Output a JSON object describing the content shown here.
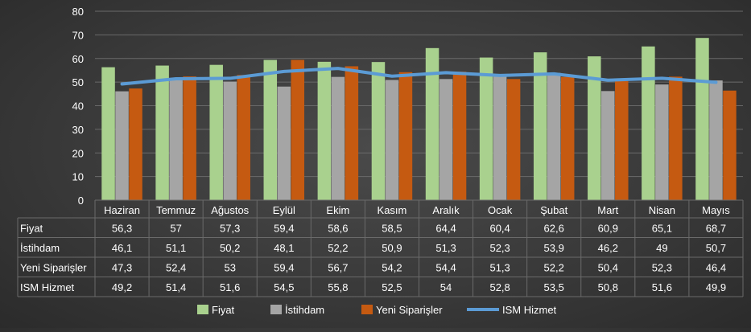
{
  "chart_data": {
    "type": "bar",
    "categories": [
      "Haziran",
      "Temmuz",
      "Ağustos",
      "Eylül",
      "Ekim",
      "Kasım",
      "Aralık",
      "Ocak",
      "Şubat",
      "Mart",
      "Nisan",
      "Mayıs"
    ],
    "series": [
      {
        "name": "Fiyat",
        "kind": "bar",
        "color": "#a9d18e",
        "values": [
          56.3,
          57,
          57.3,
          59.4,
          58.6,
          58.5,
          64.4,
          60.4,
          62.6,
          60.9,
          65.1,
          68.7
        ],
        "labels": [
          "56,3",
          "57",
          "57,3",
          "59,4",
          "58,6",
          "58,5",
          "64,4",
          "60,4",
          "62,6",
          "60,9",
          "65,1",
          "68,7"
        ]
      },
      {
        "name": "İstihdam",
        "kind": "bar",
        "color": "#a5a5a5",
        "values": [
          46.1,
          51.1,
          50.2,
          48.1,
          52.2,
          50.9,
          51.3,
          52.3,
          53.9,
          46.2,
          49,
          50.7
        ],
        "labels": [
          "46,1",
          "51,1",
          "50,2",
          "48,1",
          "52,2",
          "50,9",
          "51,3",
          "52,3",
          "53,9",
          "46,2",
          "49",
          "50,7"
        ]
      },
      {
        "name": "Yeni Siparişler",
        "kind": "bar",
        "color": "#c55a11",
        "values": [
          47.3,
          52.4,
          53,
          59.4,
          56.7,
          54.2,
          54.4,
          51.3,
          52.2,
          50.4,
          52.3,
          46.4
        ],
        "labels": [
          "47,3",
          "52,4",
          "53",
          "59,4",
          "56,7",
          "54,2",
          "54,4",
          "51,3",
          "52,2",
          "50,4",
          "52,3",
          "46,4"
        ]
      },
      {
        "name": "ISM Hizmet",
        "kind": "line",
        "color": "#5b9bd5",
        "values": [
          49.2,
          51.4,
          51.6,
          54.5,
          55.8,
          52.5,
          54,
          52.8,
          53.5,
          50.8,
          51.6,
          49.9
        ],
        "labels": [
          "49,2",
          "51,4",
          "51,6",
          "54,5",
          "55,8",
          "52,5",
          "54",
          "52,8",
          "53,5",
          "50,8",
          "51,6",
          "49,9"
        ]
      }
    ],
    "ylim": [
      0,
      80
    ],
    "yticks": [
      0,
      10,
      20,
      30,
      40,
      50,
      60,
      70,
      80
    ],
    "grid": true,
    "data_table": true,
    "legend": "bottom"
  }
}
